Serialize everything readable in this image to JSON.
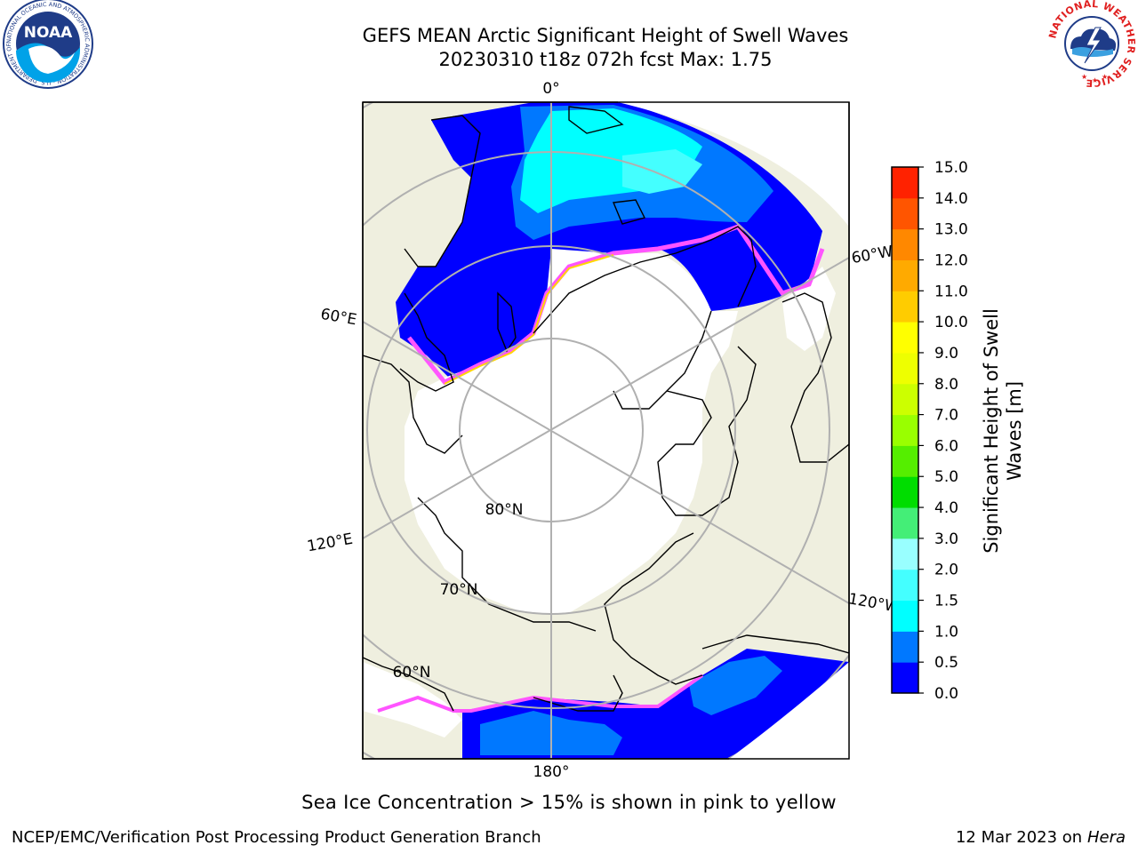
{
  "title": {
    "line1": "GEFS MEAN Arctic Significant Height of Swell Waves",
    "line2": "20230310 t18z 072h fcst   Max: 1.75"
  },
  "map": {
    "labels": {
      "lon_0": "0°",
      "lon_180": "180°",
      "lon_60e": "60°E",
      "lon_120e": "120°E",
      "lon_60w": "60°W",
      "lon_120w": "120°W",
      "lat_80": "80°N",
      "lat_70": "70°N",
      "lat_60": "60°N"
    },
    "colors": {
      "land": "#efefdf",
      "ice": "#ffffff",
      "grid": "#b0b0b0",
      "ice_edge_pink": "#ff55ff",
      "ice_edge_yellow": "#ffd700"
    }
  },
  "colorbar": {
    "label_line1": "Significant Height of Swell",
    "label_line2": "Waves [m]",
    "ticks": [
      "0.0",
      "0.5",
      "1.0",
      "1.5",
      "2.0",
      "3.0",
      "4.0",
      "5.0",
      "6.0",
      "7.0",
      "8.0",
      "9.0",
      "10.0",
      "11.0",
      "12.0",
      "13.0",
      "14.0",
      "15.0"
    ],
    "colors": [
      "#0000ff",
      "#0078ff",
      "#00ffff",
      "#44ffff",
      "#99ffff",
      "#44ee77",
      "#00dd00",
      "#55ee00",
      "#99ff00",
      "#ccff00",
      "#eeff00",
      "#ffff00",
      "#ffcc00",
      "#ffaa00",
      "#ff8800",
      "#ff5500",
      "#ff2200",
      "#ff0000"
    ]
  },
  "note": "Sea Ice Concentration > 15% is shown in pink to yellow",
  "footer": {
    "org": "NCEP/EMC/Verification Post Processing Product Generation Branch",
    "date": "12 Mar 2023 on",
    "machine": "Hera"
  },
  "logos": {
    "noaa_text": "NOAA",
    "noaa_ring": "NATIONAL OCEANIC AND ATMOSPHERIC ADMINISTRATION · U.S. DEPARTMENT OF COMMERCE",
    "nws_ring": "NATIONAL WEATHER SERVICE"
  }
}
